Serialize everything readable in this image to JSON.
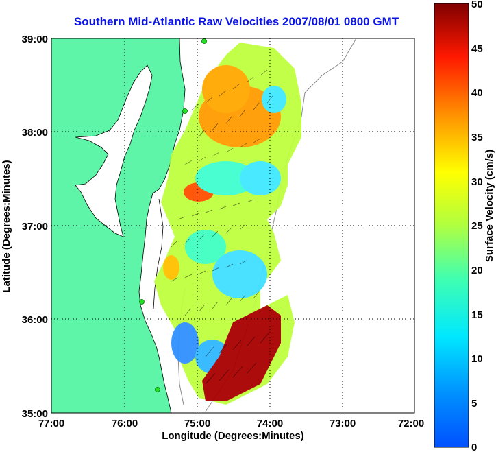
{
  "title": "Southern Mid-Atlantic Raw Velocities 2007/08/01 0800 GMT",
  "map": {
    "xlabel": "Longitude (Degrees:Minutes)",
    "ylabel": "Latitude (Degrees:Minutes)",
    "x_ticks": [
      "77:00",
      "76:00",
      "75:00",
      "74:00",
      "73:00",
      "72:00"
    ],
    "y_ticks": [
      "39:00",
      "38:00",
      "37:00",
      "36:00",
      "35:00"
    ],
    "grid": true,
    "land_color": "#5ef5a8",
    "water_color": "#ffffff",
    "station_color": "#22e022"
  },
  "colorbar": {
    "label": "Surface Velocity (cm/s)",
    "ticks": [
      "50",
      "45",
      "40",
      "35",
      "30",
      "25",
      "20",
      "15",
      "10",
      "5",
      "0"
    ],
    "range": [
      0,
      50
    ],
    "colormap": "jet"
  }
}
